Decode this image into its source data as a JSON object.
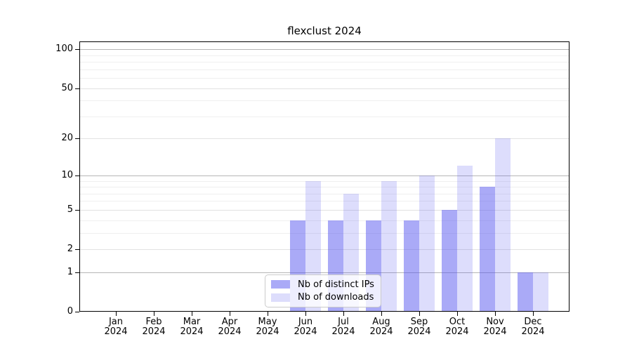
{
  "figure": {
    "title": "flexclust 2024",
    "background_color": "#ffffff"
  },
  "chart_data": {
    "type": "bar",
    "title": "flexclust 2024",
    "categories": [
      "Jan 2024",
      "Feb 2024",
      "Mar 2024",
      "Apr 2024",
      "May 2024",
      "Jun 2024",
      "Jul 2024",
      "Aug 2024",
      "Sep 2024",
      "Oct 2024",
      "Nov 2024",
      "Dec 2024"
    ],
    "series": [
      {
        "name": "Nb of distinct IPs",
        "color": "rgba(85,85,240,0.5)",
        "values": [
          0,
          0,
          0,
          0,
          0,
          4,
          4,
          4,
          4,
          5,
          8,
          1
        ]
      },
      {
        "name": "Nb of downloads",
        "color": "rgba(85,85,240,0.2)",
        "values": [
          0,
          0,
          0,
          0,
          0,
          9,
          7,
          9,
          10,
          12,
          20,
          1
        ]
      }
    ],
    "xlabel": "",
    "ylabel": "",
    "y_axis": {
      "scale": "log1p",
      "major_ticks": [
        0,
        1,
        2,
        5,
        10,
        20,
        50,
        100
      ],
      "power_ticks": [
        1,
        10,
        100
      ],
      "minor_gridlines": [
        3,
        4,
        6,
        7,
        8,
        9,
        30,
        40,
        60,
        70,
        80,
        90
      ],
      "range_max": 115
    },
    "grid": "on",
    "legend_position": "inside-bottom-center",
    "bar_grouping": "paired-touching"
  },
  "legend": {
    "entries": [
      "Nb of distinct IPs",
      "Nb of downloads"
    ]
  }
}
